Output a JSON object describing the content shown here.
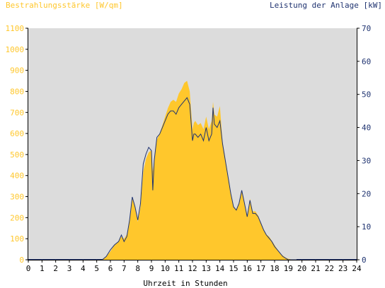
{
  "chart_data": {
    "type": "area",
    "left_axis_title": "Bestrahlungsstärke [W/qm]",
    "right_axis_title": "Leistung der Anlage [kW]",
    "xlabel": "Uhrzeit in Stunden",
    "xlim": [
      0,
      24
    ],
    "ylim_left": [
      0,
      1100
    ],
    "ylim_right": [
      0,
      70
    ],
    "x_ticks": [
      "0",
      "1",
      "2",
      "3",
      "4",
      "5",
      "6",
      "7",
      "8",
      "9",
      "10",
      "11",
      "12",
      "13",
      "14",
      "15",
      "16",
      "17",
      "18",
      "19",
      "20",
      "21",
      "22",
      "23",
      "24"
    ],
    "y_left_ticks": [
      "0",
      "100",
      "200",
      "300",
      "400",
      "500",
      "600",
      "700",
      "800",
      "900",
      "1000",
      "1100"
    ],
    "y_right_ticks": [
      "0",
      "10",
      "20",
      "30",
      "40",
      "50",
      "60",
      "70"
    ],
    "colors": {
      "irradiance_fill": "#ffc72c",
      "power_line": "#1f3370",
      "left_axis_text": "#ffc72c",
      "right_axis_text": "#1f3370",
      "plot_background": "#dcdcdc"
    },
    "grid": false,
    "series": [
      {
        "key": "irradiance",
        "type": "area",
        "axis": "left",
        "x": [
          5.4,
          5.7,
          6.0,
          6.3,
          6.6,
          6.8,
          7.0,
          7.2,
          7.4,
          7.6,
          7.8,
          8.0,
          8.2,
          8.4,
          8.6,
          8.8,
          9.0,
          9.1,
          9.2,
          9.4,
          9.6,
          9.8,
          10.0,
          10.2,
          10.4,
          10.6,
          10.8,
          11.0,
          11.2,
          11.4,
          11.6,
          11.8,
          12.0,
          12.1,
          12.2,
          12.4,
          12.6,
          12.8,
          13.0,
          13.2,
          13.4,
          13.5,
          13.6,
          13.8,
          14.0,
          14.2,
          14.4,
          14.6,
          14.8,
          15.0,
          15.2,
          15.4,
          15.6,
          15.8,
          16.0,
          16.2,
          16.4,
          16.6,
          16.8,
          17.0,
          17.2,
          17.4,
          17.6,
          17.8,
          18.0,
          18.2,
          18.4,
          18.6,
          18.8,
          19.0,
          19.3,
          19.6
        ],
        "y": [
          0,
          15,
          40,
          70,
          90,
          110,
          100,
          120,
          190,
          290,
          250,
          180,
          250,
          420,
          480,
          510,
          520,
          420,
          470,
          570,
          600,
          640,
          680,
          720,
          750,
          760,
          750,
          790,
          810,
          840,
          850,
          800,
          620,
          650,
          660,
          640,
          650,
          620,
          680,
          620,
          660,
          750,
          690,
          680,
          730,
          560,
          480,
          400,
          320,
          250,
          240,
          270,
          330,
          270,
          210,
          290,
          230,
          230,
          210,
          170,
          140,
          120,
          110,
          90,
          70,
          50,
          30,
          20,
          10,
          5,
          0,
          0
        ]
      },
      {
        "key": "power",
        "type": "line",
        "axis": "right",
        "x": [
          5.4,
          5.7,
          6.0,
          6.3,
          6.6,
          6.8,
          7.0,
          7.2,
          7.4,
          7.6,
          7.8,
          8.0,
          8.2,
          8.4,
          8.6,
          8.8,
          9.0,
          9.1,
          9.2,
          9.4,
          9.6,
          9.8,
          10.0,
          10.2,
          10.4,
          10.6,
          10.8,
          11.0,
          11.2,
          11.4,
          11.6,
          11.8,
          12.0,
          12.1,
          12.2,
          12.4,
          12.6,
          12.8,
          13.0,
          13.2,
          13.4,
          13.5,
          13.6,
          13.8,
          14.0,
          14.2,
          14.4,
          14.6,
          14.8,
          15.0,
          15.2,
          15.4,
          15.6,
          15.8,
          16.0,
          16.2,
          16.4,
          16.6,
          16.8,
          17.0,
          17.2,
          17.4,
          17.6,
          17.8,
          18.0,
          18.2,
          18.4,
          18.6,
          18.8,
          19.0,
          19.3,
          19.6
        ],
        "y": [
          0,
          1,
          3,
          4.5,
          5.5,
          7.5,
          5.5,
          7,
          12,
          19,
          16,
          12,
          17,
          29,
          32,
          34,
          33,
          21,
          30,
          37,
          38,
          40,
          42,
          44,
          45,
          45,
          44,
          46,
          47,
          48,
          49,
          47,
          36,
          38,
          38,
          37,
          38,
          36,
          40,
          36,
          38,
          46,
          41,
          40,
          42,
          35,
          30,
          25,
          20,
          16,
          15,
          17,
          21,
          17,
          13,
          18,
          14,
          14,
          13,
          11,
          9,
          7.5,
          6.5,
          5.5,
          4,
          3,
          2,
          1,
          0.5,
          0,
          0,
          0
        ]
      }
    ]
  }
}
